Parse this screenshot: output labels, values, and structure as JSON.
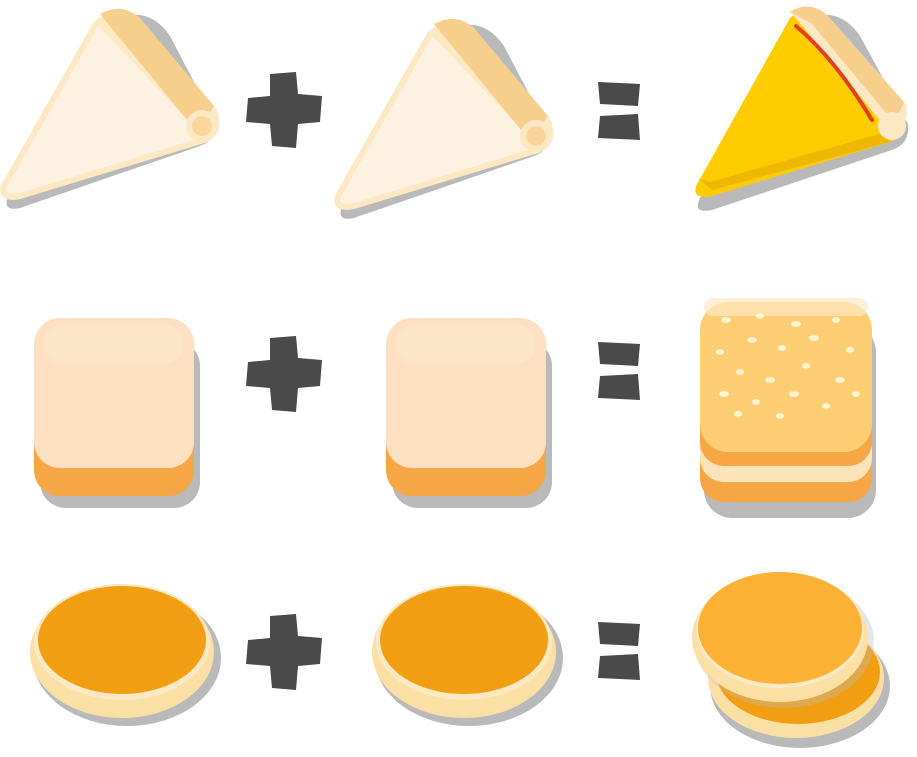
{
  "colors": {
    "background": "#ffffff",
    "operator": "#4a4a4a",
    "shadow": "#b9b9b9",
    "crust_light": "#fde8c4",
    "crust_mid": "#f6cf8d",
    "dough": "#fdf2e2",
    "cheese": "#ffcc00",
    "cheese_dark": "#eeb700",
    "sauce_line": "#e0401a",
    "bread_face": "#fde0c2",
    "bread_crust": "#f6a645",
    "toast_face": "#fdcd73",
    "toast_band": "#fbe2b8",
    "sesame": "#fff4d0",
    "bun_face": "#f19e12",
    "bun_rim": "#fbe0a6",
    "bun_top": "#fbb134"
  },
  "recipes": [
    {
      "inputs": [
        "pizza-crust-slice-icon",
        "pizza-crust-slice-icon"
      ],
      "result": "cheese-pizza-slice-icon"
    },
    {
      "inputs": [
        "bread-slice-icon",
        "bread-slice-icon"
      ],
      "result": "sesame-sandwich-stack-icon"
    },
    {
      "inputs": [
        "bun-half-icon",
        "bun-half-icon"
      ],
      "result": "stacked-buns-icon"
    }
  ],
  "operators": {
    "plus": "plus-icon",
    "equals": "equals-icon"
  }
}
